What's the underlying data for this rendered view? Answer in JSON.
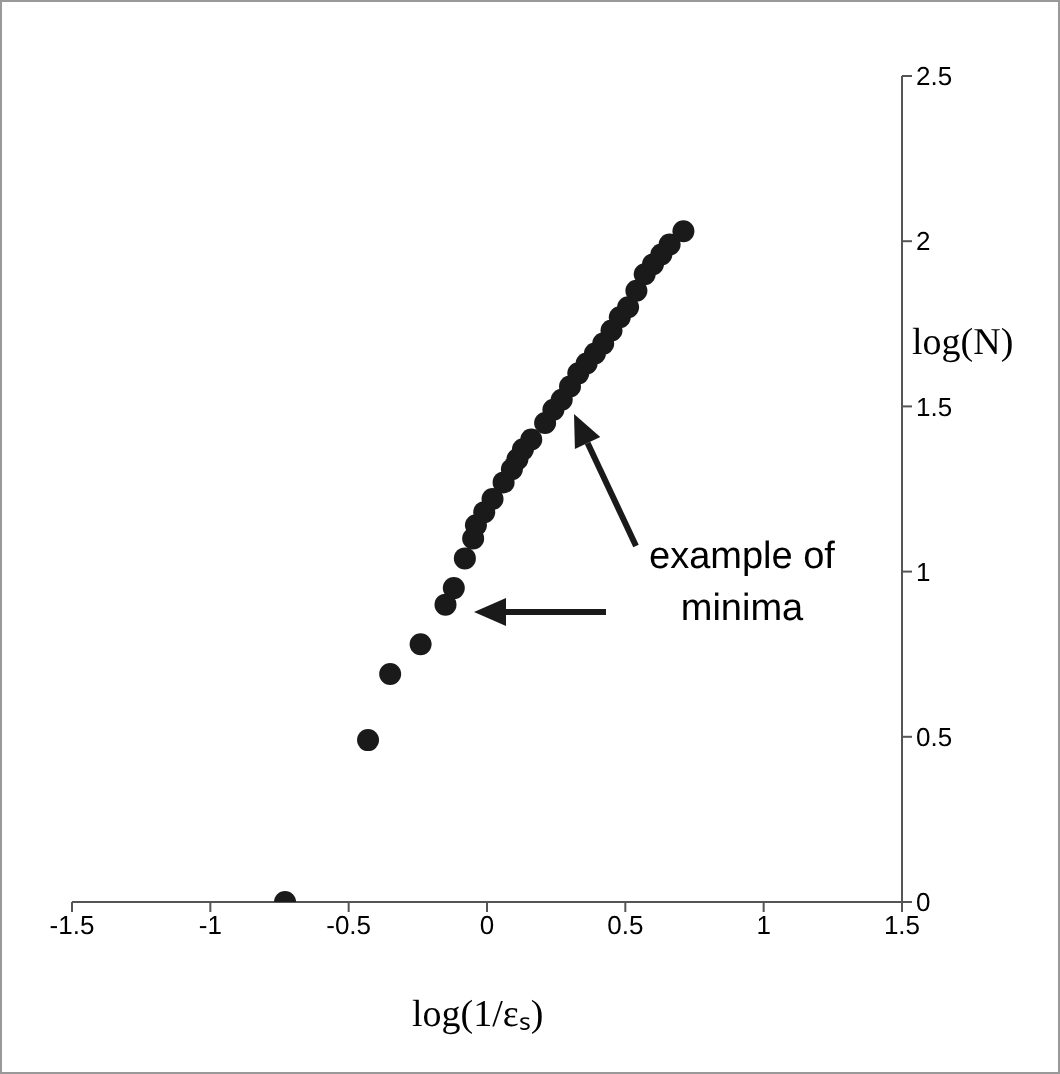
{
  "chart_data": {
    "type": "scatter",
    "xlabel": "log(1/εₛ)",
    "ylabel": "log(N)",
    "x": [
      -0.73,
      -0.43,
      -0.35,
      -0.24,
      -0.15,
      -0.12,
      -0.08,
      -0.05,
      -0.04,
      -0.01,
      0.02,
      0.06,
      0.09,
      0.11,
      0.13,
      0.16,
      0.21,
      0.24,
      0.27,
      0.3,
      0.33,
      0.36,
      0.39,
      0.42,
      0.45,
      0.48,
      0.51,
      0.54,
      0.57,
      0.6,
      0.63,
      0.66,
      0.71
    ],
    "values": [
      0,
      0.49,
      0.69,
      0.78,
      0.9,
      0.95,
      1.04,
      1.1,
      1.14,
      1.18,
      1.22,
      1.27,
      1.31,
      1.34,
      1.37,
      1.4,
      1.45,
      1.49,
      1.52,
      1.56,
      1.6,
      1.63,
      1.66,
      1.69,
      1.73,
      1.77,
      1.8,
      1.85,
      1.9,
      1.93,
      1.96,
      1.99,
      2.03
    ],
    "color": "#1a1a1a",
    "marker": "circle",
    "xlim": [
      -1.5,
      1.5
    ],
    "xticks": [
      -1.5,
      -1,
      -0.5,
      0,
      0.5,
      1,
      1.5
    ],
    "ylim": [
      0,
      2.5
    ],
    "yticks": [
      0,
      0.5,
      1,
      1.5,
      2,
      2.5
    ],
    "grid": false,
    "annotations": [
      "example of minima"
    ]
  }
}
